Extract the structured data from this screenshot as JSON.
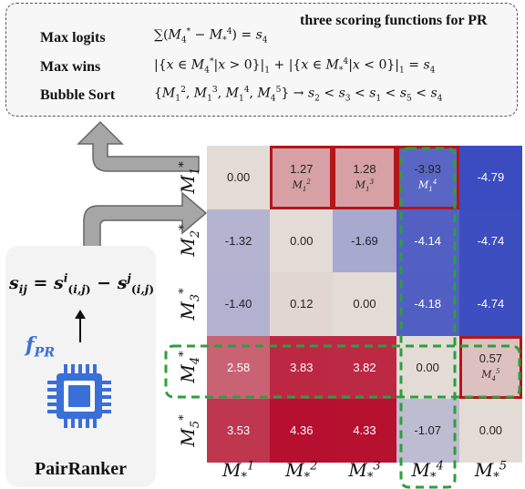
{
  "top_box": {
    "heading": "three scoring functions for PR",
    "rows": [
      {
        "name": "Max logits",
        "color": "#3c7a2a",
        "formula_html": "∑(<i>M</i><sub>4</sub><sup>*</sup> − <i>M</i><sub>*</sub><sup>4</sup>) = <i>s</i><sub>4</sub>"
      },
      {
        "name": "Max wins",
        "color": "#3c7a2a",
        "formula_html": "|{<i>x</i> ∈ <i>M</i><sub>4</sub><sup>*</sup>|<i>x</i> &gt; 0}|<sub>1</sub> + |{<i>x</i> ∈ <i>M</i><sub>*</sub><sup>4</sup>|<i>x</i> &lt; 0}|<sub>1</sub> = <i>s</i><sub>4</sub>"
      },
      {
        "name": "Bubble Sort",
        "color": "#b3161a",
        "formula_html": "{<i>M</i><sub>1</sub><sup>2</sup>, <i>M</i><sub>1</sub><sup>3</sup>, <i>M</i><sub>1</sub><sup>4</sup>, <i>M</i><sub>4</sub><sup>5</sup>} → <i>s</i><sub>2</sub> &lt; <i>s</i><sub>3</sub> &lt; <i>s</i><sub>1</sub> &lt; <i>s</i><sub>5</sub> &lt; <i>s</i><sub>4</sub>"
      }
    ]
  },
  "left_panel": {
    "equation_html": "<b><i>s</i><sub><i>ij</i></sub> = <i>s</i><sup><i>i</i></sup><sub>(<i>i,j</i>)</sub> − <i>s</i><sup><i>j</i></sup><sub>(<i>i,j</i>)</sub></b>",
    "function_label_html": "<b><i>f</i><sub><i>PR</i></sub></b>",
    "model_name": "PairRanker",
    "icon": "chip-icon"
  },
  "matrix": {
    "row_labels_html": [
      "<i>M</i><sub>1</sub><sup>*</sup>",
      "<i>M</i><sub>2</sub><sup>*</sup>",
      "<i>M</i><sub>3</sub><sup>*</sup>",
      "<i>M</i><sub>4</sub><sup>*</sup>",
      "<i>M</i><sub>5</sub><sup>*</sup>"
    ],
    "col_labels_html": [
      "<i>M</i><sub>*</sub><sup>1</sup>",
      "<i>M</i><sub>*</sub><sup>2</sup>",
      "<i>M</i><sub>*</sub><sup>3</sup>",
      "<i>M</i><sub>*</sub><sup>4</sup>",
      "<i>M</i><sub>*</sub><sup>5</sup>"
    ],
    "values": [
      [
        "0.00",
        "1.27",
        "1.28",
        "-3.93",
        "-4.79"
      ],
      [
        "-1.32",
        "0.00",
        "-1.69",
        "-4.14",
        "-4.74"
      ],
      [
        "-1.40",
        "0.12",
        "0.00",
        "-4.18",
        "-4.74"
      ],
      [
        "2.58",
        "3.83",
        "3.82",
        "0.00",
        "0.57"
      ],
      [
        "3.53",
        "4.36",
        "4.33",
        "-1.07",
        "0.00"
      ]
    ],
    "cell_sublabels": [
      {
        "row": 0,
        "col": 1,
        "html": "<i>M</i><sub>1</sub><sup>2</sup>"
      },
      {
        "row": 0,
        "col": 2,
        "html": "<i>M</i><sub>1</sub><sup>3</sup>"
      },
      {
        "row": 0,
        "col": 3,
        "html": "<i>M</i><sub>1</sub><sup>4</sup>"
      },
      {
        "row": 3,
        "col": 4,
        "html": "<i>M</i><sub>4</sub><sup>5</sup>"
      }
    ],
    "red_boxed_cells": [
      [
        0,
        1
      ],
      [
        0,
        2
      ],
      [
        0,
        3
      ],
      [
        3,
        4
      ]
    ],
    "colors": {
      "neutral": "#e3dcd6",
      "blue_max": "#3b4cc0",
      "red_max": "#b40426",
      "highlight_red": "#b3161a",
      "highlight_green": "#2e9e3e"
    }
  }
}
